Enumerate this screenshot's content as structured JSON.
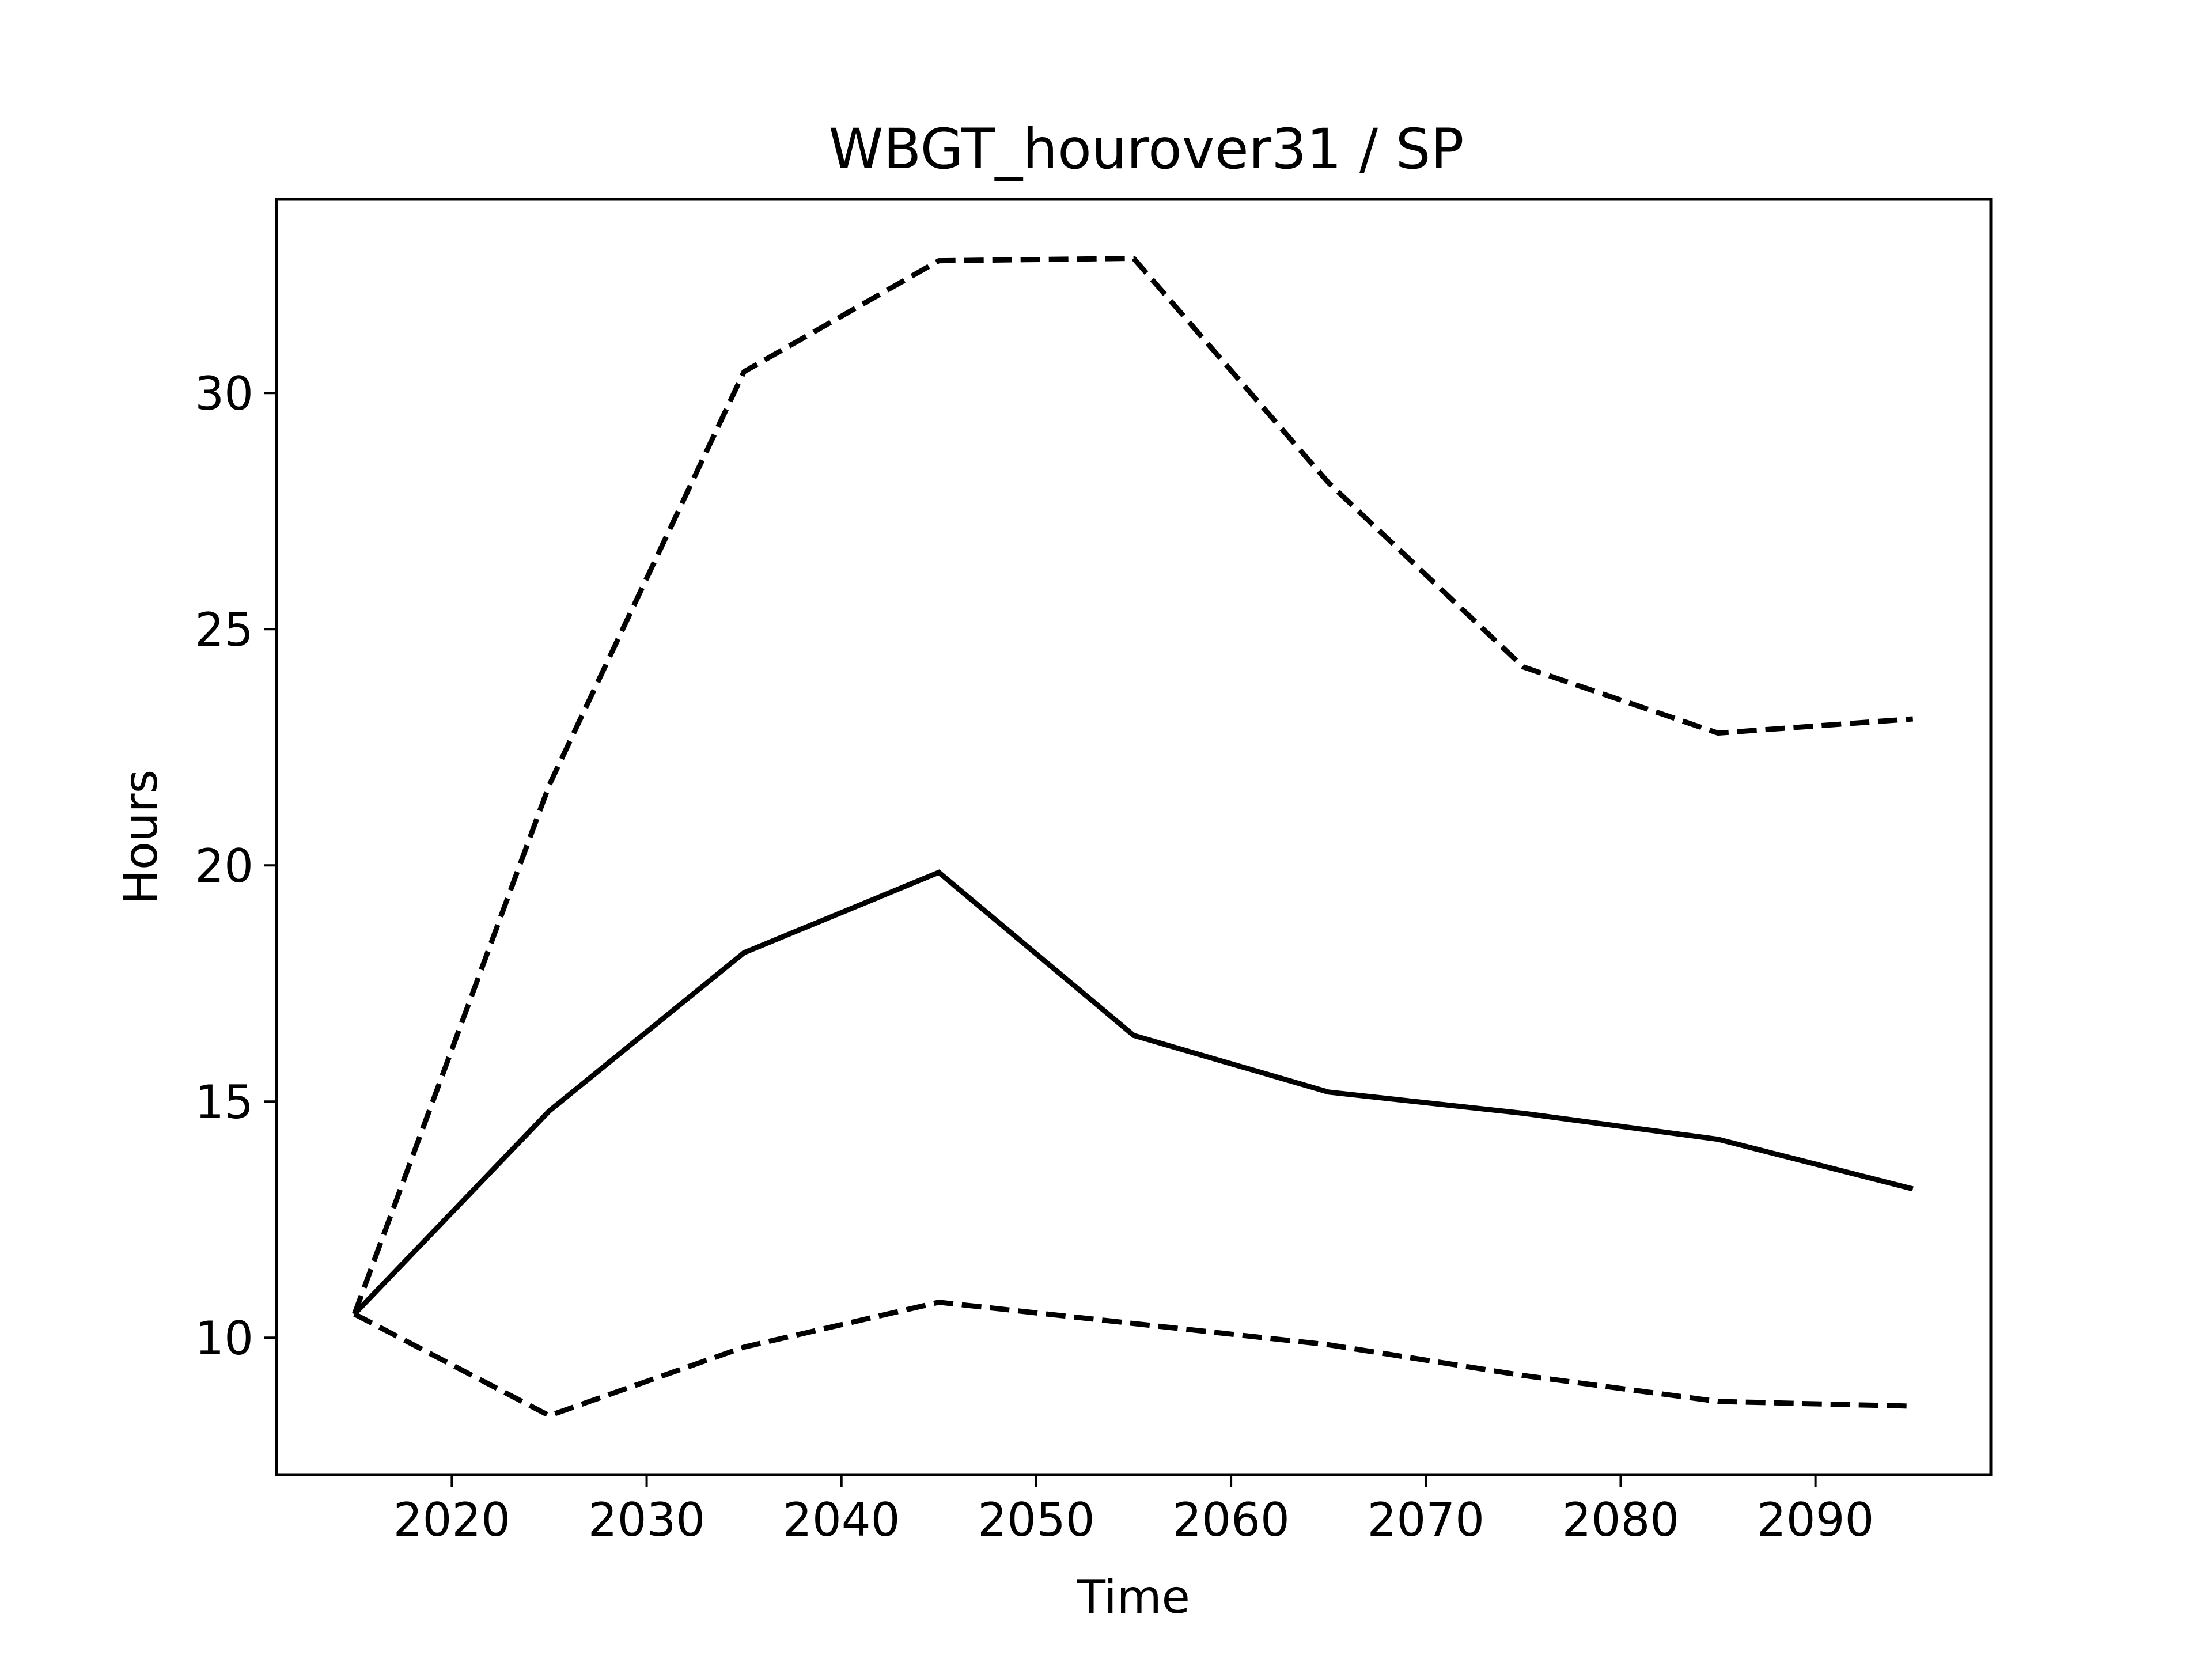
{
  "chart_data": {
    "type": "line",
    "title": "WBGT_hourover31 / SP",
    "xlabel": "Time",
    "ylabel": "Hours",
    "x": [
      2015,
      2025,
      2035,
      2045,
      2055,
      2065,
      2075,
      2085,
      2095
    ],
    "xlim": [
      2011,
      2099
    ],
    "ylim": [
      7.1,
      34.1
    ],
    "xticks": [
      2020,
      2030,
      2040,
      2050,
      2060,
      2070,
      2080,
      2090
    ],
    "yticks": [
      10,
      15,
      20,
      25,
      30
    ],
    "grid": false,
    "series": [
      {
        "values": [
          10.5,
          14.8,
          18.15,
          19.85,
          16.4,
          15.2,
          14.75,
          14.2,
          13.15
        ],
        "style": "solid",
        "color": "#000000"
      },
      {
        "values": [
          10.5,
          21.7,
          30.45,
          32.8,
          32.85,
          28.1,
          24.2,
          22.8,
          23.1
        ],
        "style": "dashed",
        "color": "#000000"
      },
      {
        "values": [
          10.5,
          8.35,
          9.8,
          10.75,
          10.3,
          9.85,
          9.2,
          8.65,
          8.55
        ],
        "style": "dashed",
        "color": "#000000"
      }
    ]
  }
}
